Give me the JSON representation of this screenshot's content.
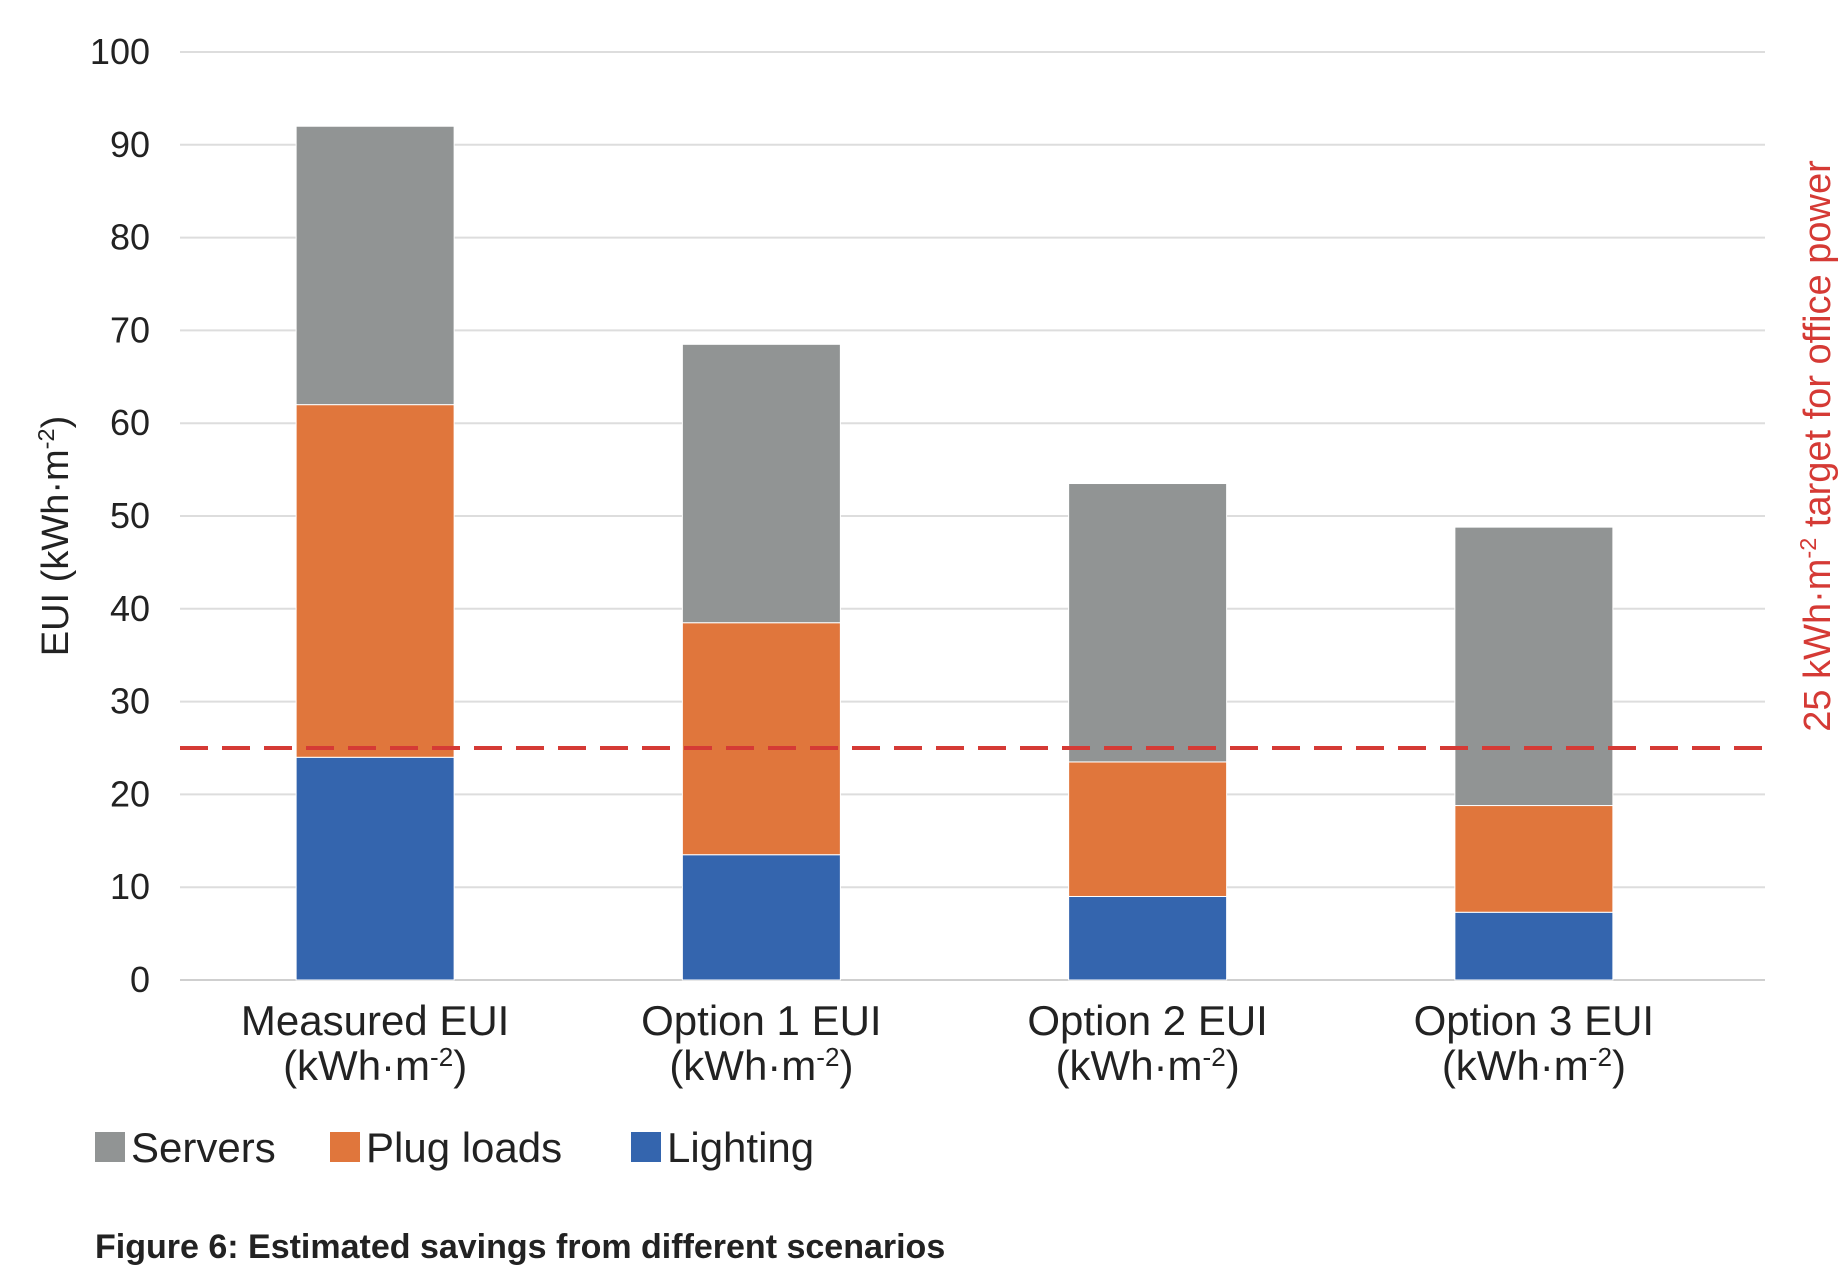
{
  "chart_data": {
    "type": "bar",
    "stacked": true,
    "categories": [
      "Measured EUI (kWh·m-2)",
      "Option 1 EUI (kWh·m-2)",
      "Option 2 EUI (kWh·m-2)",
      "Option 3 EUI (kWh·m-2)"
    ],
    "category_lines": [
      {
        "main": "Measured EUI",
        "unit_pre": "(kWh·m",
        "unit_sup": "-2",
        "unit_post": ")"
      },
      {
        "main": "Option 1 EUI",
        "unit_pre": "(kWh·m",
        "unit_sup": "-2",
        "unit_post": ")"
      },
      {
        "main": "Option 2 EUI",
        "unit_pre": "(kWh·m",
        "unit_sup": "-2",
        "unit_post": ")"
      },
      {
        "main": "Option 3 EUI",
        "unit_pre": "(kWh·m",
        "unit_sup": "-2",
        "unit_post": ")"
      }
    ],
    "series": [
      {
        "name": "Lighting",
        "color": "#3465AE",
        "values": [
          24,
          13.5,
          9,
          7.3
        ]
      },
      {
        "name": "Plug loads",
        "color": "#E0763C",
        "values": [
          38,
          25,
          14.5,
          11.5
        ]
      },
      {
        "name": "Servers",
        "color": "#919494",
        "values": [
          30,
          30,
          30,
          30
        ]
      }
    ],
    "legend_order": [
      "Servers",
      "Plug loads",
      "Lighting"
    ],
    "legend_position": "bottom-left",
    "ylabel_pre": "EUI (kWh·m",
    "ylabel_sup": "-2",
    "ylabel_post": ")",
    "ylim": [
      0,
      100
    ],
    "yticks": [
      0,
      10,
      20,
      30,
      40,
      50,
      60,
      70,
      80,
      90,
      100
    ],
    "grid": true,
    "target": {
      "value": 25,
      "color": "#D53A35",
      "label_pre": "25 kWh·m",
      "label_sup": "-2",
      "label_post": " target for office power"
    },
    "caption": "Figure 6: Estimated savings from different scenarios"
  }
}
